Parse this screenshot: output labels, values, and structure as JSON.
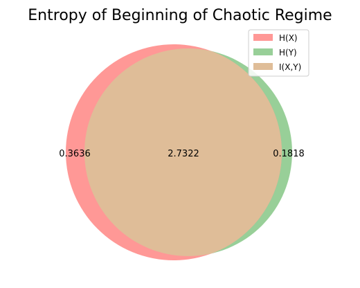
{
  "chart_data": {
    "type": "venn",
    "title": "Entropy of Beginning of Chaotic Regime",
    "sets": [
      {
        "name": "H(X)",
        "color": "#ff9896"
      },
      {
        "name": "H(Y)",
        "color": "#98cf98"
      },
      {
        "name": "I(X,Y)",
        "color": "#dfbd98"
      }
    ],
    "regions": [
      {
        "id": "x_only",
        "label": "0.3636",
        "value": 0.3636
      },
      {
        "id": "intersection",
        "label": "2.7322",
        "value": 2.7322
      },
      {
        "id": "y_only",
        "label": "0.1818",
        "value": 0.1818
      }
    ],
    "legend_position": "top-right"
  }
}
